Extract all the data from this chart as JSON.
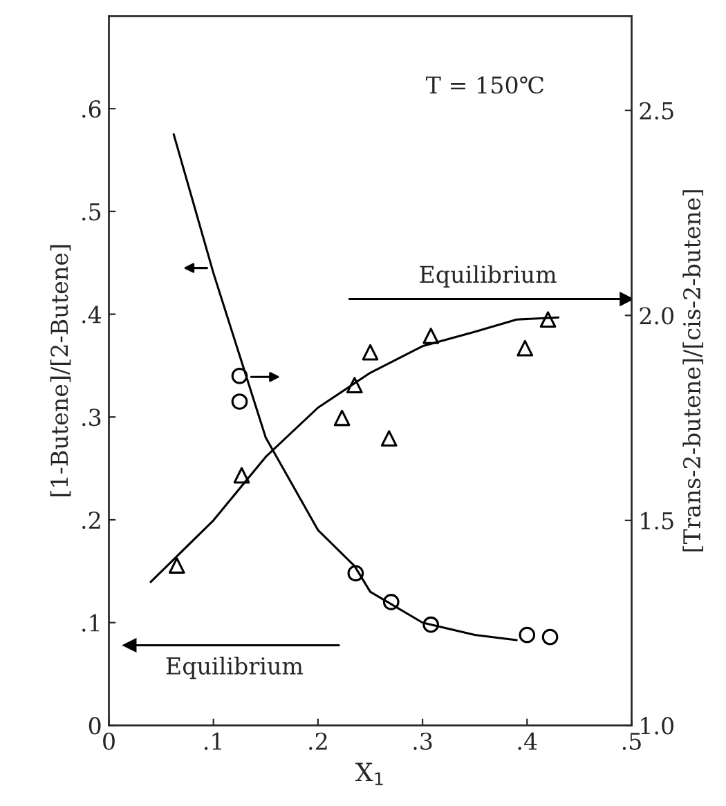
{
  "chart_data": {
    "type": "scatter",
    "xlabel": "X$_{1}$",
    "ylabel": "[1-Butene]/[2-Butene]",
    "y2label": "[Trans-2-butene]/[cis-2-butene]",
    "xlim": [
      0,
      0.5
    ],
    "xticks": [
      0,
      {
        "value": 0.1,
        "label": ".1"
      },
      {
        "value": 0.2,
        "label": ".2"
      },
      {
        "value": 0.3,
        "label": ".3"
      },
      {
        "value": 0.4,
        "label": ".4"
      },
      {
        "value": 0.5,
        "label": ".5"
      }
    ],
    "ylim": [
      0,
      0.69
    ],
    "yticks": [
      0,
      {
        "value": 0.1,
        "label": ".1"
      },
      {
        "value": 0.2,
        "label": ".2"
      },
      {
        "value": 0.3,
        "label": ".3"
      },
      {
        "value": 0.4,
        "label": ".4"
      },
      {
        "value": 0.5,
        "label": ".5"
      },
      {
        "value": 0.6,
        "label": ".6"
      }
    ],
    "y2lim": [
      1.0,
      2.73
    ],
    "y2ticks": [
      {
        "value": 1.0,
        "label": "1.0"
      },
      {
        "value": 1.5,
        "label": "1.5"
      },
      {
        "value": 2.0,
        "label": "2.0"
      },
      {
        "value": 2.5,
        "label": "2.5"
      }
    ],
    "grid": false,
    "series": [
      {
        "marker": "circle",
        "color": "#000000",
        "x": [
          0.125,
          0.125,
          0.236,
          0.27,
          0.308,
          0.4,
          0.422
        ],
        "values": [
          0.34,
          0.315,
          0.148,
          0.12,
          0.098,
          0.088,
          0.086
        ]
      },
      {
        "type": "line",
        "line_style": "solid",
        "color": "#000000",
        "x": [
          0.062,
          0.1,
          0.125,
          0.15,
          0.2,
          0.235,
          0.25,
          0.3,
          0.35,
          0.39
        ],
        "values": [
          0.575,
          0.44,
          0.36,
          0.28,
          0.19,
          0.155,
          0.13,
          0.1,
          0.088,
          0.083
        ]
      },
      {
        "marker": "triangle",
        "axis": "y2",
        "color": "#000000",
        "x": [
          0.065,
          0.127,
          0.223,
          0.235,
          0.25,
          0.268,
          0.308,
          0.398,
          0.42
        ],
        "values": [
          1.39,
          1.61,
          1.75,
          1.83,
          1.91,
          1.7,
          1.95,
          1.92,
          1.99
        ]
      },
      {
        "type": "line",
        "line_style": "solid",
        "axis": "y2",
        "color": "#000000",
        "x": [
          0.04,
          0.1,
          0.15,
          0.2,
          0.25,
          0.3,
          0.35,
          0.39,
          0.43
        ],
        "values": [
          1.35,
          1.5,
          1.655,
          1.775,
          1.86,
          1.925,
          1.96,
          1.99,
          1.995
        ]
      }
    ],
    "ref_lines": [
      {
        "axis": "y",
        "value": 0.078,
        "label": "Equilibrium",
        "color": "#000000"
      },
      {
        "axis": "y2",
        "value": 2.04,
        "label": "Equilibrium",
        "color": "#000000"
      }
    ],
    "annotations": [
      "T = 150℃"
    ]
  }
}
